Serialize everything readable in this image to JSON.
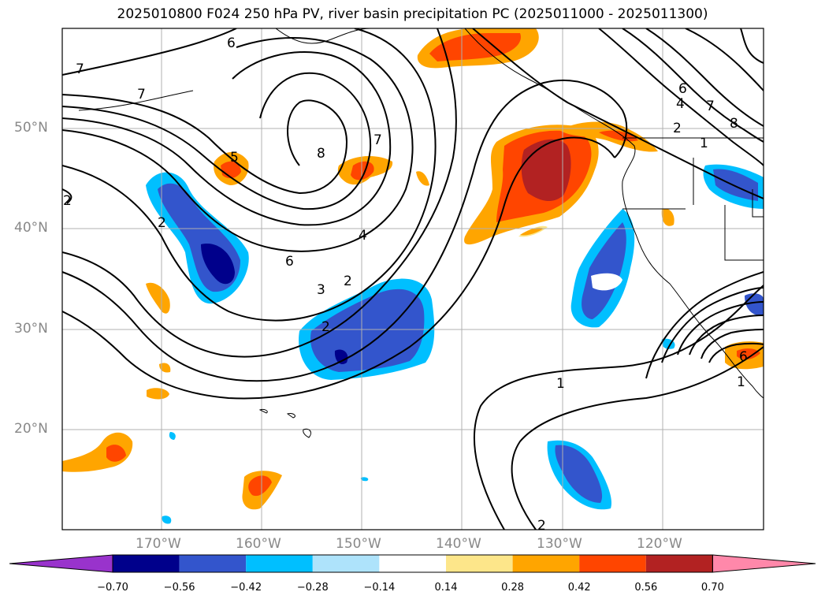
{
  "title": "2025010800 F024 250 hPa PV, river basin precipitation PC (2025011000 - 2025011300)",
  "lat_labels": [
    "50°N",
    "40°N",
    "30°N",
    "20°N"
  ],
  "lon_labels": [
    "170°W",
    "160°W",
    "150°W",
    "140°W",
    "130°W",
    "120°W"
  ],
  "contour_labels": [
    "6",
    "7",
    "7",
    "8",
    "7",
    "6",
    "4",
    "2",
    "3",
    "2",
    "1",
    "1",
    "2",
    "5",
    "6",
    "8",
    "7",
    "6",
    "4",
    "2",
    "2",
    "2",
    "1"
  ],
  "colorbar": {
    "ticks": [
      "−0.70",
      "−0.56",
      "−0.42",
      "−0.28",
      "−0.14",
      "0.14",
      "0.28",
      "0.42",
      "0.56",
      "0.70"
    ],
    "colors": [
      "#9933cc",
      "#00008b",
      "#3355cc",
      "#00bfff",
      "#aee3fb",
      "#ffffff",
      "#fde68a",
      "#ffa500",
      "#ff4500",
      "#b22222",
      "#ff88aa"
    ]
  }
}
